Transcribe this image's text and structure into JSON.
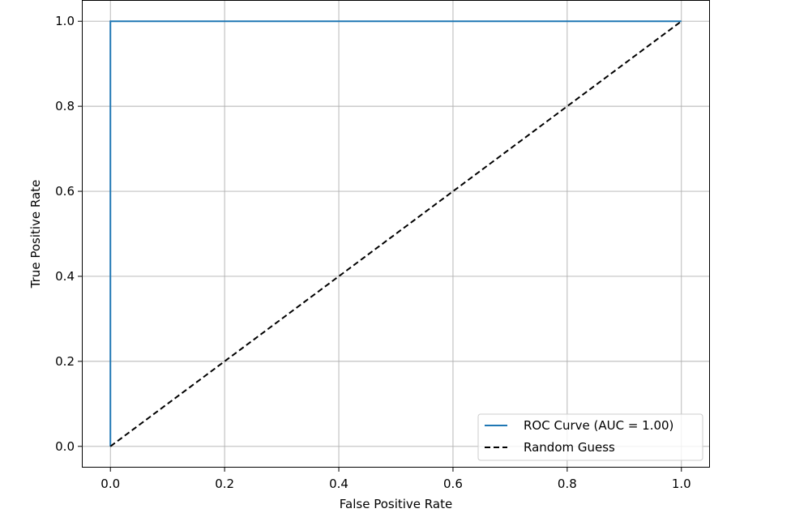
{
  "chart_data": {
    "type": "line",
    "title": "",
    "xlabel": "False Positive Rate",
    "ylabel": "True Positive Rate",
    "xlim": [
      -0.05,
      1.05
    ],
    "ylim": [
      -0.05,
      1.05
    ],
    "xticks": [
      0.0,
      0.2,
      0.4,
      0.6,
      0.8,
      1.0
    ],
    "xtick_labels": [
      "0.0",
      "0.2",
      "0.4",
      "0.6",
      "0.8",
      "1.0"
    ],
    "yticks": [
      0.0,
      0.2,
      0.4,
      0.6,
      0.8,
      1.0
    ],
    "ytick_labels": [
      "0.0",
      "0.2",
      "0.4",
      "0.6",
      "0.8",
      "1.0"
    ],
    "grid": true,
    "legend_position": "lower right",
    "series": [
      {
        "name": "ROC Curve (AUC = 1.00)",
        "color": "#1f77b4",
        "style": "solid",
        "x": [
          0.0,
          0.0,
          1.0
        ],
        "y": [
          0.0,
          1.0,
          1.0
        ]
      },
      {
        "name": "Random Guess",
        "color": "#000000",
        "style": "dashed",
        "x": [
          0.0,
          1.0
        ],
        "y": [
          0.0,
          1.0
        ]
      }
    ]
  }
}
